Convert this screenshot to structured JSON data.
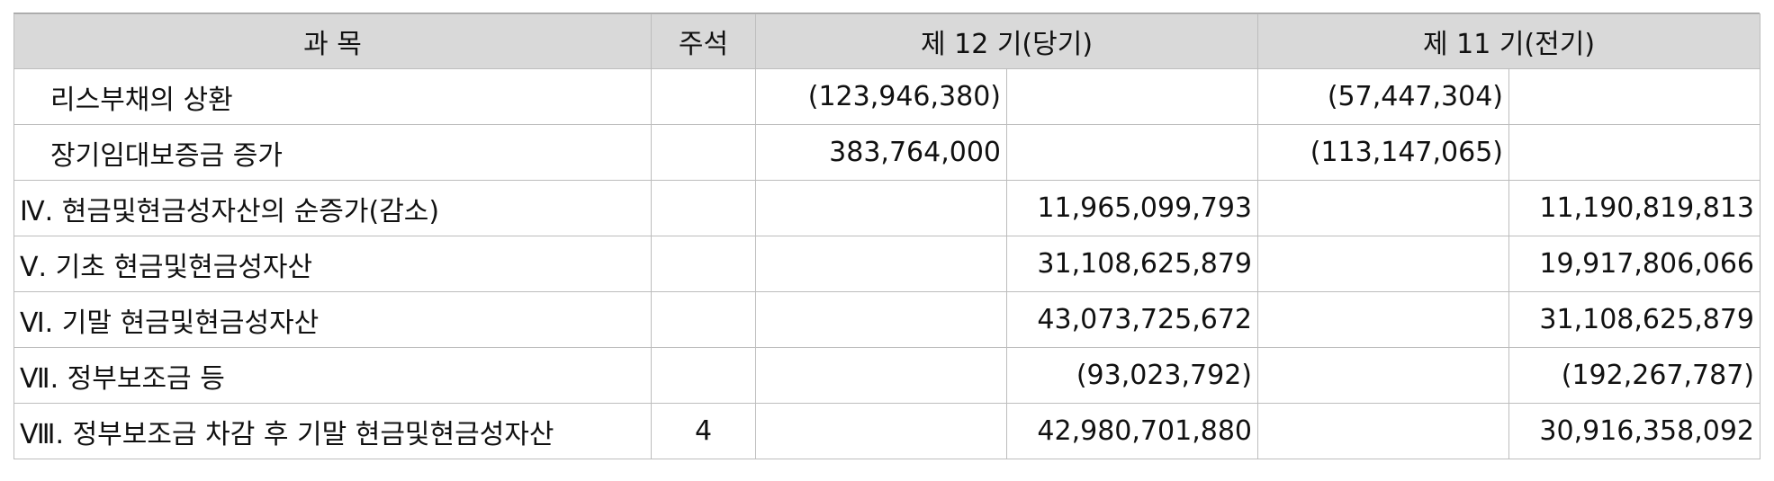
{
  "header": {
    "item": "과 목",
    "note": "주석",
    "current": "제 12 기(당기)",
    "prior": "제 11 기(전기)"
  },
  "rows": [
    {
      "item": "리스부채의 상환",
      "note": "",
      "cur_a": "(123,946,380)",
      "cur_b": "",
      "pri_a": "(57,447,304)",
      "pri_b": ""
    },
    {
      "item": "장기임대보증금 증가",
      "note": "",
      "cur_a": "383,764,000",
      "cur_b": "",
      "pri_a": "(113,147,065)",
      "pri_b": ""
    },
    {
      "item": "Ⅳ. 현금및현금성자산의 순증가(감소)",
      "note": "",
      "cur_a": "",
      "cur_b": "11,965,099,793",
      "pri_a": "",
      "pri_b": "11,190,819,813"
    },
    {
      "item": "Ⅴ. 기초 현금및현금성자산",
      "note": "",
      "cur_a": "",
      "cur_b": "31,108,625,879",
      "pri_a": "",
      "pri_b": "19,917,806,066"
    },
    {
      "item": "Ⅵ. 기말 현금및현금성자산",
      "note": "",
      "cur_a": "",
      "cur_b": "43,073,725,672",
      "pri_a": "",
      "pri_b": "31,108,625,879"
    },
    {
      "item": "Ⅶ. 정부보조금 등",
      "note": "",
      "cur_a": "",
      "cur_b": "(93,023,792)",
      "pri_a": "",
      "pri_b": "(192,267,787)"
    },
    {
      "item": "Ⅷ. 정부보조금 차감 후 기말 현금및현금성자산",
      "note": "4",
      "cur_a": "",
      "cur_b": "42,980,701,880",
      "pri_a": "",
      "pri_b": "30,916,358,092"
    }
  ]
}
